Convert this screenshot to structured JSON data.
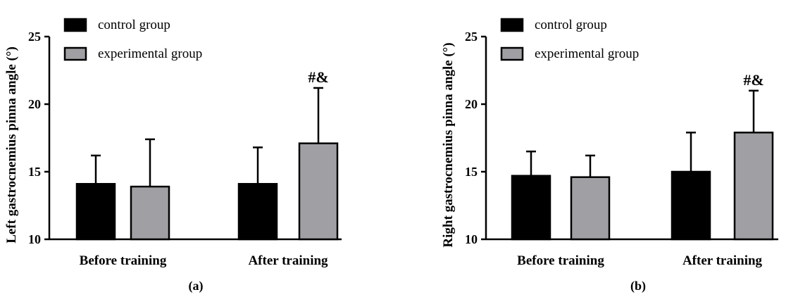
{
  "chart_data": [
    {
      "type": "bar",
      "panel_label": "(a)",
      "ylabel": "Left gastrocnemius pinna angle (°)",
      "categories": [
        "Before training",
        "After training"
      ],
      "ylim": [
        10,
        25
      ],
      "yticks": [
        "10",
        "15",
        "20",
        "25"
      ],
      "legend_position": "top-left",
      "series": [
        {
          "name": "control group",
          "color": "#000000",
          "values": [
            14.1,
            14.1
          ],
          "errors": [
            2.1,
            2.7
          ]
        },
        {
          "name": "experimental group",
          "color": "#a0a0a4",
          "values": [
            13.9,
            17.1
          ],
          "errors": [
            3.5,
            4.1
          ]
        }
      ],
      "annotations": [
        {
          "text": "#&",
          "category": "After training",
          "series": "experimental group"
        }
      ]
    },
    {
      "type": "bar",
      "panel_label": "(b)",
      "ylabel": "Right gastrocnemius pinna angle (°)",
      "categories": [
        "Before training",
        "After training"
      ],
      "ylim": [
        10,
        25
      ],
      "yticks": [
        "10",
        "15",
        "20",
        "25"
      ],
      "legend_position": "top-left",
      "series": [
        {
          "name": "control group",
          "color": "#000000",
          "values": [
            14.7,
            15.0
          ],
          "errors": [
            1.8,
            2.9
          ]
        },
        {
          "name": "experimental group",
          "color": "#a0a0a4",
          "values": [
            14.6,
            17.9
          ],
          "errors": [
            1.6,
            3.1
          ]
        }
      ],
      "annotations": [
        {
          "text": "#&",
          "category": "After training",
          "series": "experimental group"
        }
      ]
    }
  ]
}
